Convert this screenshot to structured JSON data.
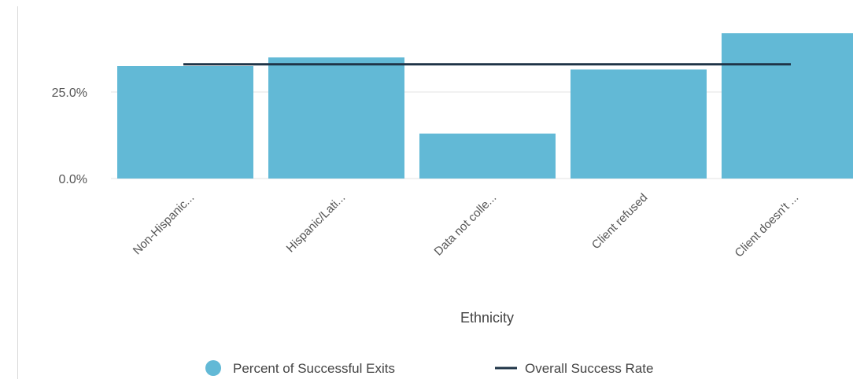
{
  "chart_data": {
    "type": "bar",
    "xlabel": "Ethnicity",
    "ylabel": "",
    "categories": [
      "Non-Hispanic...",
      "Hispanic/Lati...",
      "Data not colle...",
      "Client refused",
      "Client doesn't ..."
    ],
    "series": [
      {
        "name": "Percent of Successful Exits",
        "type": "bar",
        "values": [
          32.5,
          35.0,
          13.0,
          31.5,
          42.0
        ],
        "color": "#62b9d6"
      },
      {
        "name": "Overall Success Rate",
        "type": "line",
        "value": 33.0,
        "color": "#1f3447"
      }
    ],
    "y_ticks": [
      {
        "value": 0,
        "label": "0.0%"
      },
      {
        "value": 25,
        "label": "25.0%"
      }
    ],
    "ylim": [
      0,
      42
    ],
    "grid": true,
    "legend_position": "bottom"
  }
}
